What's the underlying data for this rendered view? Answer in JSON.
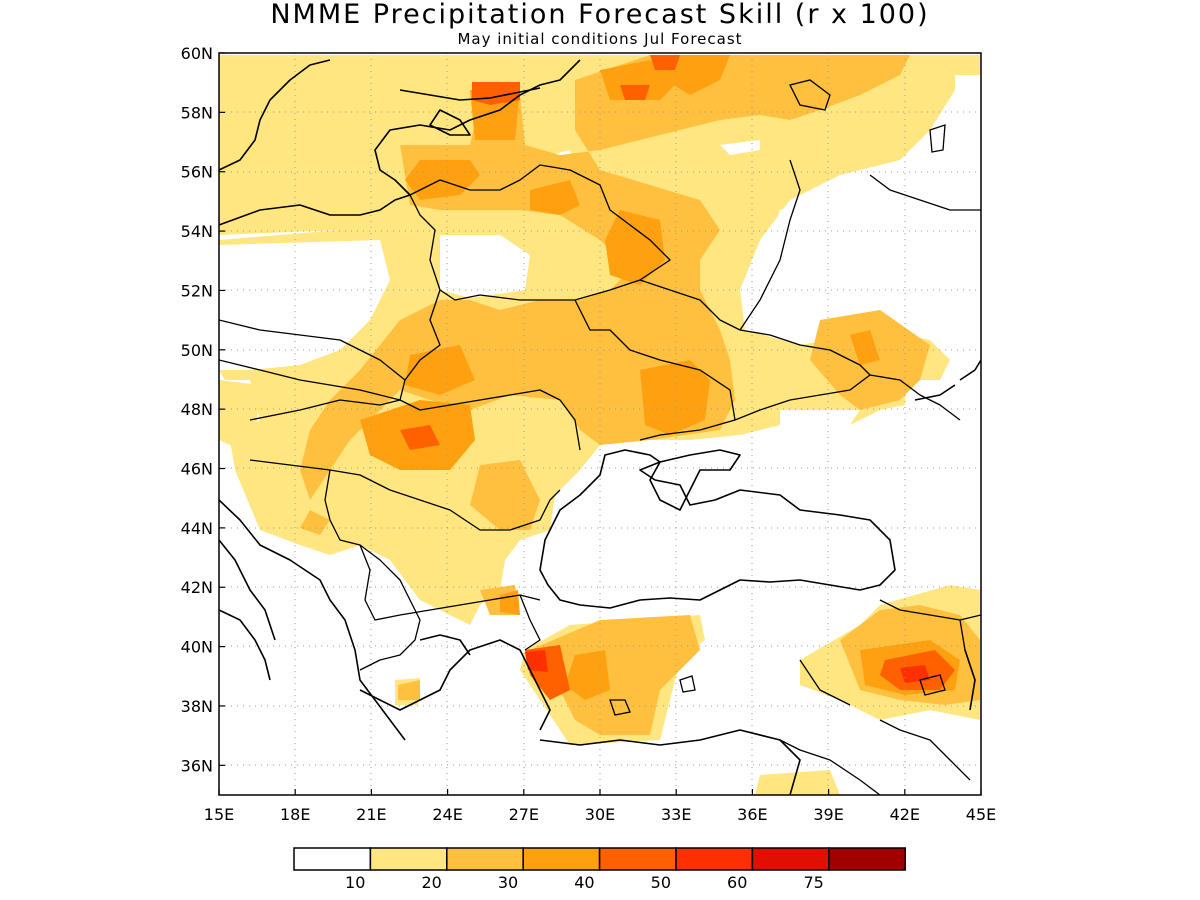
{
  "title": "NMME Precipitation Forecast Skill (r x 100)",
  "subtitle": "May initial conditions  Jul Forecast",
  "axes": {
    "lon_labels": [
      "15E",
      "18E",
      "21E",
      "24E",
      "27E",
      "30E",
      "33E",
      "36E",
      "39E",
      "42E",
      "45E"
    ],
    "lat_labels": [
      "36N",
      "38N",
      "40N",
      "42N",
      "44N",
      "46N",
      "48N",
      "50N",
      "52N",
      "54N",
      "56N",
      "58N",
      "60N"
    ]
  },
  "colorbar": {
    "colors": [
      "#ffffff",
      "#ffe680",
      "#ffc040",
      "#ffa010",
      "#ff6000",
      "#ff3000",
      "#e01000",
      "#a00000"
    ],
    "labels": [
      "10",
      "20",
      "30",
      "40",
      "50",
      "60",
      "75"
    ]
  },
  "map": {
    "extent_lon": [
      15,
      45
    ],
    "extent_lat": [
      35,
      60
    ],
    "grid": "dotted"
  }
}
